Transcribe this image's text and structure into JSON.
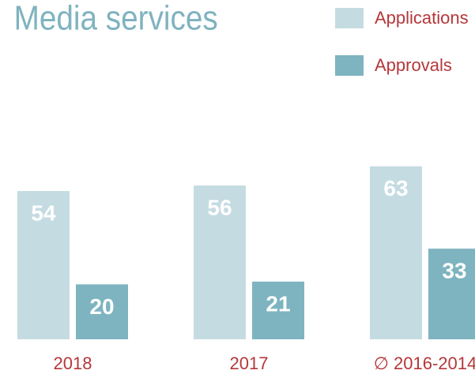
{
  "chart_data": {
    "type": "bar",
    "title": "Media services",
    "categories": [
      "2018",
      "2017",
      "∅ 2016-2014"
    ],
    "series": [
      {
        "name": "Applications",
        "color": "#c5dbe2",
        "values": [
          54,
          56,
          63
        ]
      },
      {
        "name": "Approvals",
        "color": "#7db4bf",
        "values": [
          20,
          21,
          33
        ]
      }
    ]
  }
}
